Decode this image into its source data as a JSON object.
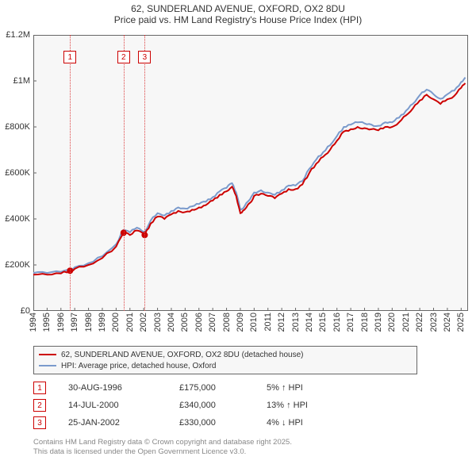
{
  "title": {
    "line1": "62, SUNDERLAND AVENUE, OXFORD, OX2 8DU",
    "line2": "Price paid vs. HM Land Registry's House Price Index (HPI)"
  },
  "chart": {
    "type": "line",
    "background_color": "#f7f7f7",
    "border_color": "#666666",
    "x_years": [
      1994,
      1995,
      1996,
      1997,
      1998,
      1999,
      2000,
      2001,
      2002,
      2003,
      2004,
      2005,
      2006,
      2007,
      2008,
      2009,
      2010,
      2011,
      2012,
      2013,
      2014,
      2015,
      2016,
      2017,
      2018,
      2019,
      2020,
      2021,
      2022,
      2023,
      2024,
      2025
    ],
    "y_ticks": [
      0,
      200000,
      400000,
      600000,
      800000,
      1000000,
      1200000
    ],
    "y_tick_labels": [
      "£0",
      "£200K",
      "£400K",
      "£600K",
      "£800K",
      "£1M",
      "£1.2M"
    ],
    "ylim": [
      0,
      1200000
    ],
    "xlim": [
      1994,
      2025.5
    ],
    "series": [
      {
        "name": "62, SUNDERLAND AVENUE, OXFORD, OX2 8DU (detached house)",
        "color": "#cc0000",
        "width": 2,
        "points": [
          [
            1994.0,
            158000
          ],
          [
            1995.0,
            158000
          ],
          [
            1996.0,
            163000
          ],
          [
            1996.66,
            175000
          ],
          [
            1997.0,
            183000
          ],
          [
            1998.0,
            200000
          ],
          [
            1999.0,
            230000
          ],
          [
            2000.0,
            280000
          ],
          [
            2000.54,
            340000
          ],
          [
            2001.0,
            330000
          ],
          [
            2001.5,
            350000
          ],
          [
            2002.07,
            330000
          ],
          [
            2002.5,
            380000
          ],
          [
            2003.0,
            410000
          ],
          [
            2003.5,
            400000
          ],
          [
            2004.0,
            420000
          ],
          [
            2004.5,
            435000
          ],
          [
            2005.0,
            430000
          ],
          [
            2005.5,
            440000
          ],
          [
            2006.0,
            450000
          ],
          [
            2006.5,
            460000
          ],
          [
            2007.0,
            480000
          ],
          [
            2007.5,
            505000
          ],
          [
            2008.0,
            520000
          ],
          [
            2008.4,
            540000
          ],
          [
            2008.7,
            500000
          ],
          [
            2009.0,
            425000
          ],
          [
            2009.3,
            440000
          ],
          [
            2009.7,
            470000
          ],
          [
            2010.0,
            500000
          ],
          [
            2010.5,
            510000
          ],
          [
            2011.0,
            500000
          ],
          [
            2011.5,
            490000
          ],
          [
            2012.0,
            510000
          ],
          [
            2012.5,
            530000
          ],
          [
            2013.0,
            530000
          ],
          [
            2013.5,
            550000
          ],
          [
            2014.0,
            600000
          ],
          [
            2014.5,
            640000
          ],
          [
            2015.0,
            670000
          ],
          [
            2015.5,
            700000
          ],
          [
            2016.0,
            740000
          ],
          [
            2016.5,
            780000
          ],
          [
            2017.0,
            790000
          ],
          [
            2017.5,
            800000
          ],
          [
            2018.0,
            795000
          ],
          [
            2018.5,
            790000
          ],
          [
            2019.0,
            785000
          ],
          [
            2019.5,
            800000
          ],
          [
            2020.0,
            800000
          ],
          [
            2020.5,
            820000
          ],
          [
            2021.0,
            850000
          ],
          [
            2021.5,
            880000
          ],
          [
            2022.0,
            915000
          ],
          [
            2022.5,
            940000
          ],
          [
            2023.0,
            920000
          ],
          [
            2023.5,
            900000
          ],
          [
            2024.0,
            920000
          ],
          [
            2024.5,
            935000
          ],
          [
            2025.0,
            970000
          ],
          [
            2025.3,
            990000
          ]
        ]
      },
      {
        "name": "HPI: Average price, detached house, Oxford",
        "color": "#7a9acc",
        "width": 2,
        "points": [
          [
            1994.0,
            165000
          ],
          [
            1995.0,
            165000
          ],
          [
            1996.0,
            170000
          ],
          [
            1996.66,
            182000
          ],
          [
            1997.0,
            190000
          ],
          [
            1998.0,
            208000
          ],
          [
            1999.0,
            238000
          ],
          [
            2000.0,
            290000
          ],
          [
            2000.54,
            352000
          ],
          [
            2001.0,
            342000
          ],
          [
            2001.5,
            362000
          ],
          [
            2002.07,
            343000
          ],
          [
            2002.5,
            393000
          ],
          [
            2003.0,
            425000
          ],
          [
            2003.5,
            415000
          ],
          [
            2004.0,
            435000
          ],
          [
            2004.5,
            450000
          ],
          [
            2005.0,
            445000
          ],
          [
            2005.5,
            455000
          ],
          [
            2006.0,
            465000
          ],
          [
            2006.5,
            475000
          ],
          [
            2007.0,
            495000
          ],
          [
            2007.5,
            520000
          ],
          [
            2008.0,
            535000
          ],
          [
            2008.4,
            555000
          ],
          [
            2008.7,
            515000
          ],
          [
            2009.0,
            440000
          ],
          [
            2009.3,
            455000
          ],
          [
            2009.7,
            485000
          ],
          [
            2010.0,
            515000
          ],
          [
            2010.5,
            525000
          ],
          [
            2011.0,
            515000
          ],
          [
            2011.5,
            505000
          ],
          [
            2012.0,
            525000
          ],
          [
            2012.5,
            545000
          ],
          [
            2013.0,
            545000
          ],
          [
            2013.5,
            565000
          ],
          [
            2014.0,
            618000
          ],
          [
            2014.5,
            658000
          ],
          [
            2015.0,
            690000
          ],
          [
            2015.5,
            720000
          ],
          [
            2016.0,
            760000
          ],
          [
            2016.5,
            800000
          ],
          [
            2017.0,
            810000
          ],
          [
            2017.5,
            820000
          ],
          [
            2018.0,
            815000
          ],
          [
            2018.5,
            810000
          ],
          [
            2019.0,
            805000
          ],
          [
            2019.5,
            820000
          ],
          [
            2020.0,
            820000
          ],
          [
            2020.5,
            840000
          ],
          [
            2021.0,
            870000
          ],
          [
            2021.5,
            900000
          ],
          [
            2022.0,
            938000
          ],
          [
            2022.5,
            962000
          ],
          [
            2023.0,
            942000
          ],
          [
            2023.5,
            922000
          ],
          [
            2024.0,
            942000
          ],
          [
            2024.5,
            958000
          ],
          [
            2025.0,
            995000
          ],
          [
            2025.3,
            1015000
          ]
        ]
      }
    ],
    "sale_markers": [
      {
        "x": 1996.66,
        "y": 175000,
        "color": "#cc0000",
        "radius": 4
      },
      {
        "x": 2000.54,
        "y": 340000,
        "color": "#cc0000",
        "radius": 4
      },
      {
        "x": 2002.07,
        "y": 330000,
        "color": "#cc0000",
        "radius": 4
      }
    ],
    "ref_lines": [
      {
        "x": 1996.66,
        "label": "1"
      },
      {
        "x": 2000.54,
        "label": "2"
      },
      {
        "x": 2002.07,
        "label": "3"
      }
    ],
    "x_ticks_at_half": true
  },
  "legend": [
    {
      "color": "#cc0000",
      "label": "62, SUNDERLAND AVENUE, OXFORD, OX2 8DU (detached house)"
    },
    {
      "color": "#7a9acc",
      "label": "HPI: Average price, detached house, Oxford"
    }
  ],
  "sales": [
    {
      "n": "1",
      "date": "30-AUG-1996",
      "price": "£175,000",
      "pct": "5% ↑ HPI"
    },
    {
      "n": "2",
      "date": "14-JUL-2000",
      "price": "£340,000",
      "pct": "13% ↑ HPI"
    },
    {
      "n": "3",
      "date": "25-JAN-2002",
      "price": "£330,000",
      "pct": "4% ↓ HPI"
    }
  ],
  "footer": {
    "line1": "Contains HM Land Registry data © Crown copyright and database right 2025.",
    "line2": "This data is licensed under the Open Government Licence v3.0."
  }
}
